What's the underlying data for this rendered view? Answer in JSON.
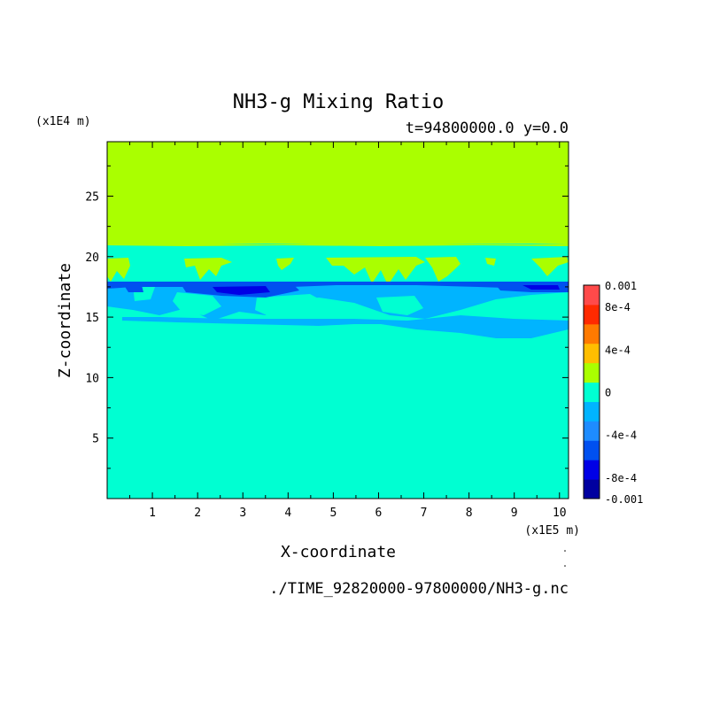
{
  "chart_data": {
    "type": "heatmap",
    "title": "NH3-g Mixing Ratio",
    "subtitle": "t=94800000.0 y=0.0",
    "xlabel": "X-coordinate",
    "ylabel": "Z-coordinate",
    "x_unit": "(x1E5 m)",
    "y_unit": "(x1E4 m)",
    "footer": "./TIME_92820000-97800000/NH3-g.nc",
    "xlim": [
      0,
      10.2
    ],
    "ylim": [
      0,
      29.5
    ],
    "x_ticks": [
      "1",
      "2",
      "3",
      "4",
      "5",
      "6",
      "7",
      "8",
      "9",
      "10"
    ],
    "y_ticks": [
      "5",
      "10",
      "15",
      "20",
      "25"
    ],
    "grid": false,
    "colorbar": {
      "range": [
        -0.001,
        0.001
      ],
      "labels": [
        "0.001",
        "8e-4",
        "4e-4",
        "0",
        "-4e-4",
        "-8e-4",
        "-0.001"
      ],
      "colors": [
        "#0000a0",
        "#0000e6",
        "#0050f0",
        "#1e8cff",
        "#00b4ff",
        "#00ffd2",
        "#aaff00",
        "#ffbe00",
        "#ff7a00",
        "#ff2a00",
        "#ff4a4a"
      ]
    },
    "regions": [
      {
        "label": "near-zero positive (upper layer)",
        "z_range": [
          21.3,
          29.5
        ],
        "value_bin": "0 to 2e-4"
      },
      {
        "label": "near-zero negative (background)",
        "z_range": [
          0,
          21.3
        ],
        "value_bin": "-2e-4 to 0"
      },
      {
        "label": "patchy positive streaks",
        "z_range": [
          17.8,
          20.5
        ],
        "value_bin": "0 to 2e-4"
      },
      {
        "label": "depleted band",
        "z_range": [
          13.5,
          18.0
        ],
        "value_bin": "-6e-4 to -2e-4"
      },
      {
        "label": "strongly depleted cores",
        "z_range": [
          17.0,
          18.0
        ],
        "value_bin": "-8e-4 to -6e-4"
      }
    ]
  }
}
